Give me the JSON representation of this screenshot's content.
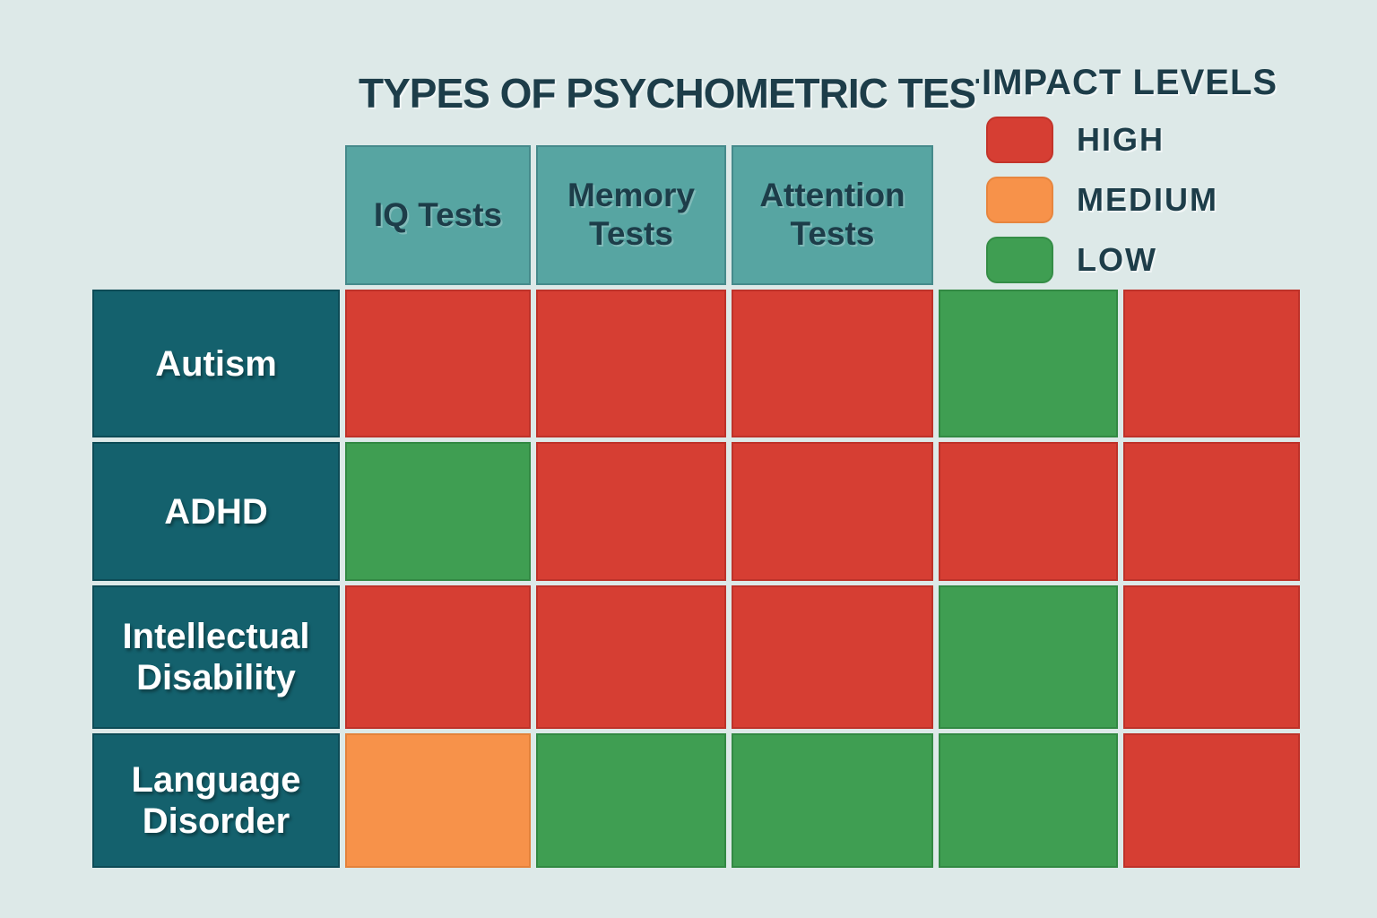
{
  "title": {
    "text": "TYPES OF PSYCHOMETRIC TESTS"
  },
  "legend": {
    "title": "IMPACT LEVELS",
    "items": [
      {
        "label": "HIGH",
        "level": "high"
      },
      {
        "label": "MEDIUM",
        "level": "medium"
      },
      {
        "label": "LOW",
        "level": "low"
      }
    ]
  },
  "colors": {
    "background": "#dde9e8",
    "high": "#d63e33",
    "medium": "#f7924a",
    "low": "#3f9e52",
    "column_header": "#57a5a2",
    "row_header": "#14616d",
    "text_dark": "#1d3d49",
    "text_light": "#ffffff"
  },
  "chart_data": {
    "type": "heatmap",
    "title": "TYPES OF PSYCHOMETRIC TESTS",
    "legend_title": "IMPACT LEVELS",
    "legend_entries": [
      "HIGH",
      "MEDIUM",
      "LOW"
    ],
    "legend_position": "top-right",
    "columns": [
      "IQ Tests",
      "Memory Tests",
      "Attention Tests",
      "",
      ""
    ],
    "rows": [
      "Autism",
      "ADHD",
      "Intellectual Disability",
      "Language Disorder"
    ],
    "values": [
      [
        "HIGH",
        "HIGH",
        "HIGH",
        "LOW",
        "HIGH"
      ],
      [
        "LOW",
        "HIGH",
        "HIGH",
        "HIGH",
        "HIGH"
      ],
      [
        "HIGH",
        "HIGH",
        "HIGH",
        "LOW",
        "HIGH"
      ],
      [
        "MEDIUM",
        "LOW",
        "LOW",
        "LOW",
        "HIGH"
      ]
    ],
    "level_colors": {
      "HIGH": "#d63e33",
      "MEDIUM": "#f7924a",
      "LOW": "#3f9e52"
    },
    "grid": "off"
  }
}
